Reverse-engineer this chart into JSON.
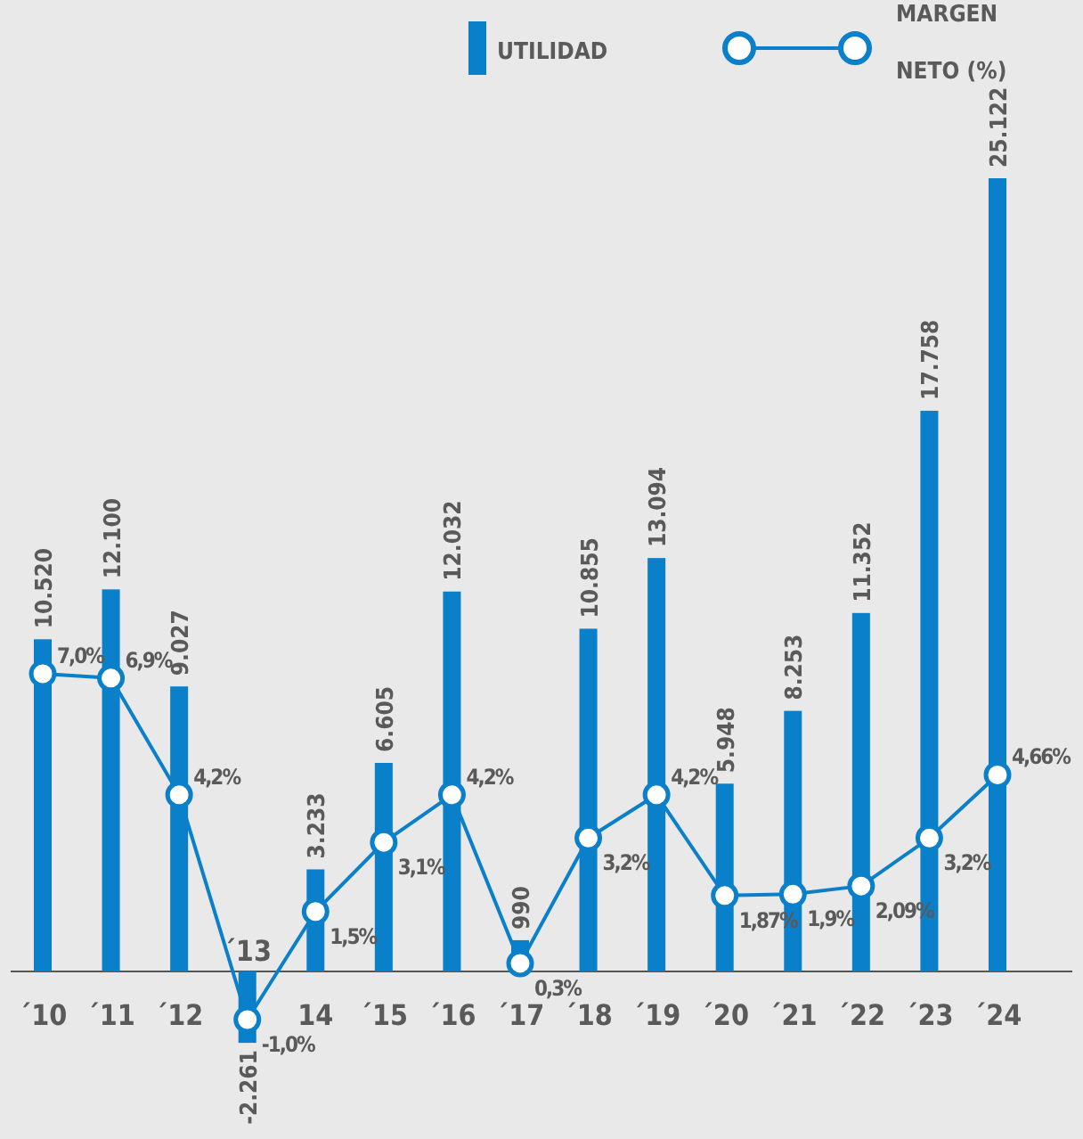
{
  "chart_data": {
    "type": "bar",
    "categories": [
      "´10",
      "´11",
      "´12",
      "´13",
      "14",
      "´15",
      "´16",
      "´17",
      "´18",
      "´19",
      "´20",
      "´21",
      "´22",
      "´23",
      "´24"
    ],
    "series": [
      {
        "name": "UTILIDAD",
        "color": "#0a7fca",
        "values": [
          10520,
          12100,
          9027,
          -2261,
          3233,
          6605,
          12032,
          990,
          10855,
          13094,
          5948,
          8253,
          11352,
          17758,
          25122
        ],
        "value_labels": [
          "10.520",
          "12.100",
          "9.027",
          "-2.261",
          "3.233",
          "6.605",
          "12.032",
          "990",
          "10.855",
          "13.094",
          "5.948",
          "8.253",
          "11.352",
          "17.758",
          "25.122"
        ]
      },
      {
        "name": "MARGEN NETO (%)",
        "type": "line",
        "axis": "y2",
        "color": "#0a7fca",
        "values": [
          7.0,
          6.9,
          4.2,
          -1.0,
          1.5,
          3.1,
          4.2,
          0.3,
          3.2,
          4.2,
          1.87,
          1.9,
          2.09,
          3.2,
          4.66
        ],
        "value_labels": [
          "7,0%",
          "6,9%",
          "4,2%",
          "-1,0%",
          "1,5%",
          "3,1%",
          "4,2%",
          "0,3%",
          "3,2%",
          "4,2%",
          "1,87%",
          "1,9%",
          "2,09%",
          "3,2%",
          "4,66%"
        ]
      }
    ],
    "legend": "top right",
    "marker": "circle",
    "tick_labels": "x"
  }
}
